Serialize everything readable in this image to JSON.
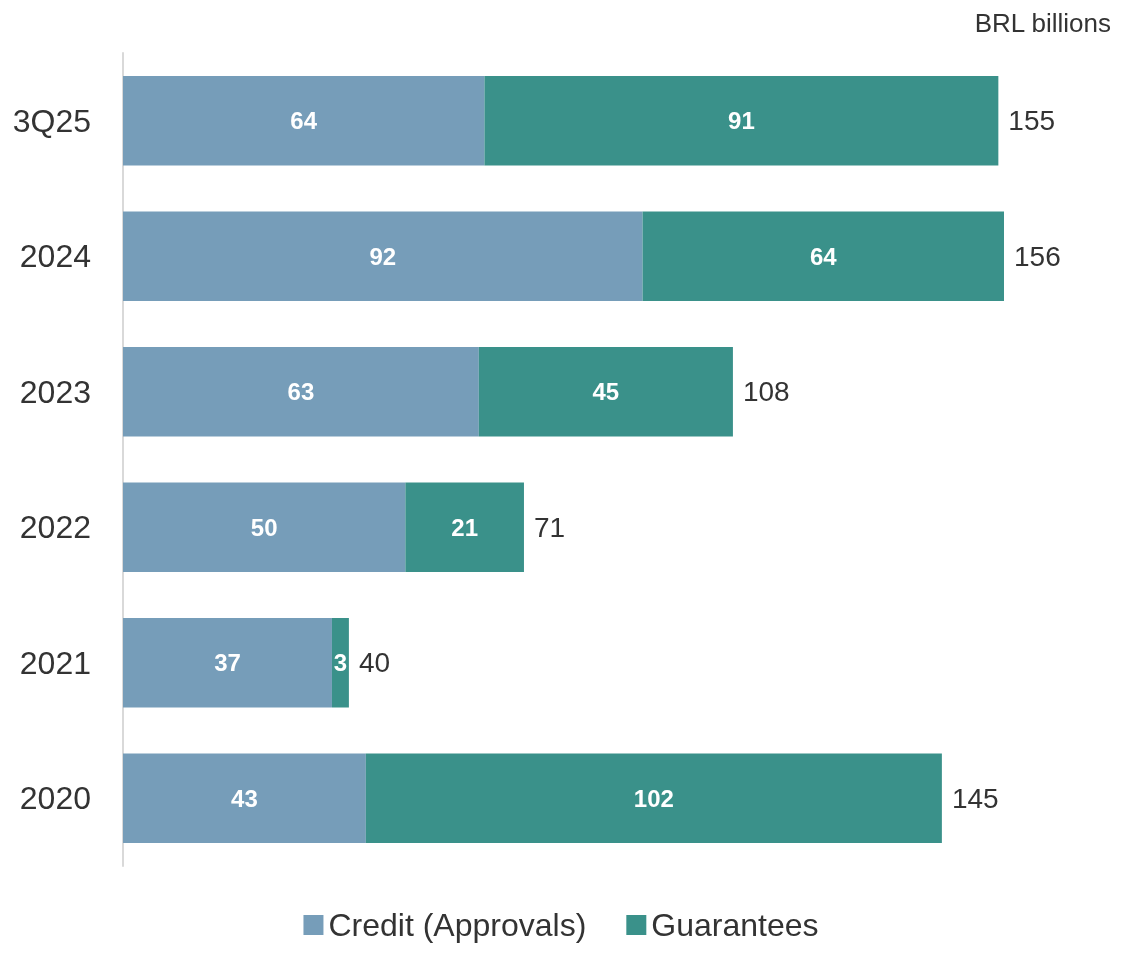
{
  "chart_data": {
    "type": "bar",
    "orientation": "horizontal",
    "stacked": true,
    "annotations": [
      "BRL billions"
    ],
    "categories": [
      "3Q25",
      "2024",
      "2023",
      "2022",
      "2021",
      "2020"
    ],
    "series": [
      {
        "name": "Credit (Approvals)",
        "color": "#769db9",
        "values": [
          64,
          92,
          63,
          50,
          37,
          43
        ]
      },
      {
        "name": "Guarantees",
        "color": "#3a918a",
        "values": [
          91,
          64,
          45,
          21,
          3,
          102
        ]
      }
    ],
    "totals": [
      "155",
      "156",
      "108",
      "71",
      "40",
      "145"
    ],
    "data_labels": true,
    "legend": "bottom"
  }
}
